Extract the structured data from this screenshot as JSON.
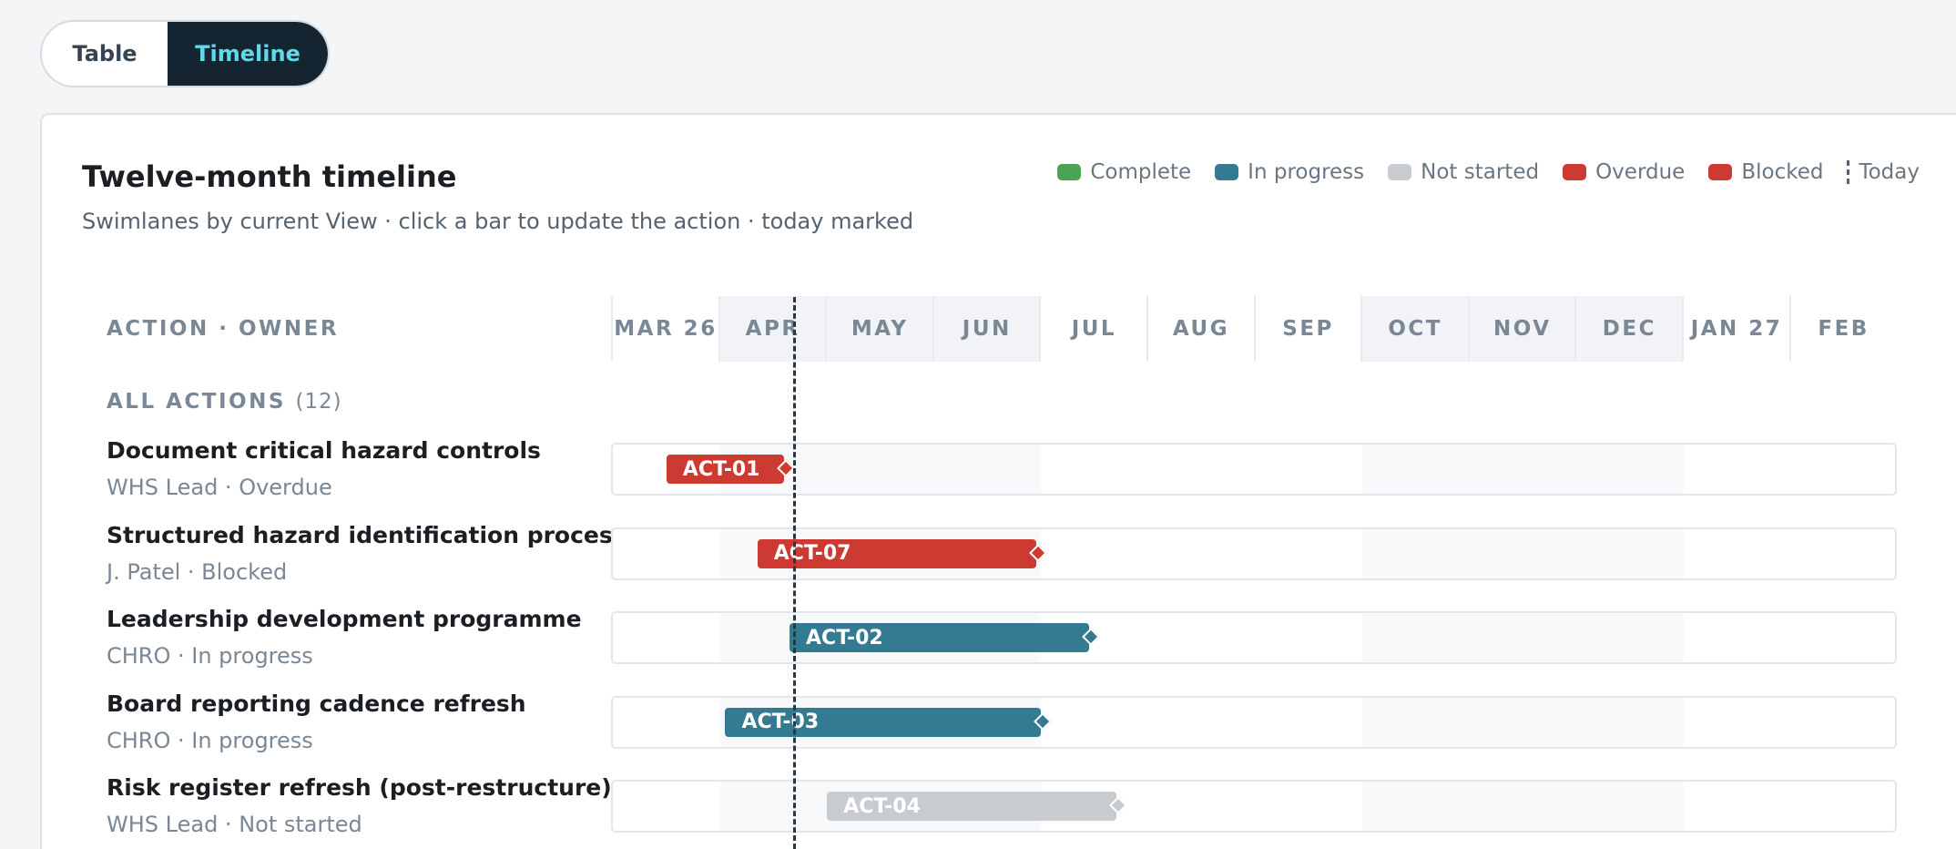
{
  "view_toggle": {
    "table": "Table",
    "timeline": "Timeline",
    "active": "Timeline"
  },
  "header": {
    "title": "Twelve-month timeline",
    "subtitle": "Swimlanes by current View · click a bar to update the action · today marked"
  },
  "legend": [
    {
      "label": "Complete",
      "color": "#4aa454"
    },
    {
      "label": "In progress",
      "color": "#347a90"
    },
    {
      "label": "Not started",
      "color": "#c8ccd1"
    },
    {
      "label": "Overdue",
      "color": "#cc3a31"
    },
    {
      "label": "Blocked",
      "color": "#cc3a31"
    }
  ],
  "today_label": "Today",
  "column_header": "ACTION · OWNER",
  "months": [
    "MAR 26",
    "APR",
    "MAY",
    "JUN",
    "JUL",
    "AUG",
    "SEP",
    "OCT",
    "NOV",
    "DEC",
    "JAN 27",
    "FEB"
  ],
  "shaded_months": [
    1,
    2,
    3,
    7,
    8,
    9
  ],
  "today_month_position": 1.7,
  "group": {
    "label": "ALL ACTIONS",
    "count": "(12)"
  },
  "actions": [
    {
      "title": "Document critical hazard controls",
      "owner": "WHS Lead",
      "status": "Overdue",
      "id": "ACT-01",
      "start_month": 0.5,
      "end_month": 1.6,
      "color": "#cc3a31"
    },
    {
      "title": "Structured hazard identification process",
      "owner": "J. Patel",
      "status": "Blocked",
      "id": "ACT-07",
      "start_month": 1.35,
      "end_month": 3.95,
      "color": "#cc3a31"
    },
    {
      "title": "Leadership development programme",
      "owner": "CHRO",
      "status": "In progress",
      "id": "ACT-02",
      "start_month": 1.65,
      "end_month": 4.45,
      "color": "#347a90"
    },
    {
      "title": "Board reporting cadence refresh",
      "owner": "CHRO",
      "status": "In progress",
      "id": "ACT-03",
      "start_month": 1.05,
      "end_month": 4.0,
      "color": "#347a90"
    },
    {
      "title": "Risk register refresh (post-restructure)",
      "owner": "WHS Lead",
      "status": "Not started",
      "id": "ACT-04",
      "start_month": 2.0,
      "end_month": 4.7,
      "color": "#c8ccd1"
    }
  ]
}
